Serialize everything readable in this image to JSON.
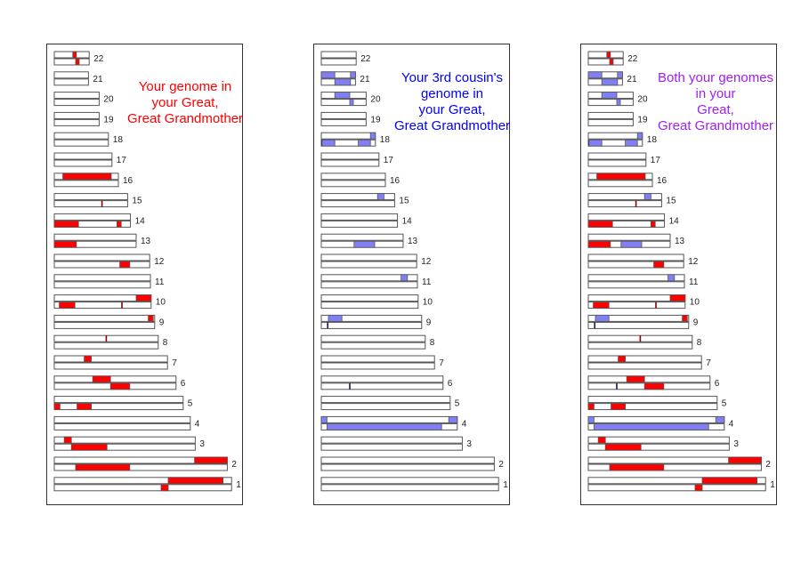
{
  "colors": {
    "red_segment": "#ff0000",
    "blue_segment": "#8080f4",
    "marker_dark_red": "#8b0000",
    "marker_dark_blue": "#1a1a5a",
    "title_red": "#ff0000",
    "title_blue": "#0000ff",
    "title_purple": "#a020f0",
    "outline": "#555555"
  },
  "chromosome_lengths_mb": {
    "1": 249,
    "2": 243,
    "3": 198,
    "4": 191,
    "5": 181,
    "6": 171,
    "7": 159,
    "8": 146,
    "9": 141,
    "10": 136,
    "11": 135,
    "12": 134,
    "13": 115,
    "14": 107,
    "15": 103,
    "16": 90,
    "17": 81,
    "18": 76,
    "19": 63,
    "20": 63,
    "21": 48,
    "22": 49
  },
  "chromosome_order": [
    "22",
    "21",
    "20",
    "19",
    "18",
    "17",
    "16",
    "15",
    "14",
    "13",
    "12",
    "11",
    "10",
    "9",
    "8",
    "7",
    "6",
    "5",
    "4",
    "3",
    "2",
    "1"
  ],
  "panels": [
    {
      "id": "yours",
      "title": "Your genome in\nyour Great,\nGreat Grandmother",
      "title_color_key": "title_red",
      "segments": [
        {
          "chr": "22",
          "strand": "top",
          "start": 26,
          "end": 31,
          "kind": "red"
        },
        {
          "chr": "22",
          "strand": "bottom",
          "start": 30,
          "end": 35,
          "kind": "red"
        },
        {
          "chr": "16",
          "strand": "top",
          "start": 12,
          "end": 80,
          "kind": "red"
        },
        {
          "chr": "15",
          "strand": "bottom",
          "start": 66,
          "end": 68,
          "kind": "red-thin"
        },
        {
          "chr": "14",
          "strand": "bottom",
          "start": 0,
          "end": 34,
          "kind": "red"
        },
        {
          "chr": "14",
          "strand": "bottom",
          "start": 88,
          "end": 94,
          "kind": "red"
        },
        {
          "chr": "13",
          "strand": "bottom",
          "start": 0,
          "end": 31,
          "kind": "red"
        },
        {
          "chr": "12",
          "strand": "bottom",
          "start": 92,
          "end": 106,
          "kind": "red"
        },
        {
          "chr": "10",
          "strand": "top",
          "start": 115,
          "end": 136,
          "kind": "red"
        },
        {
          "chr": "10",
          "strand": "bottom",
          "start": 7,
          "end": 29,
          "kind": "red"
        },
        {
          "chr": "10",
          "strand": "bottom",
          "start": 94,
          "end": 96,
          "kind": "red-thin"
        },
        {
          "chr": "9",
          "strand": "top",
          "start": 132,
          "end": 139,
          "kind": "red"
        },
        {
          "chr": "8",
          "strand": "top",
          "start": 72,
          "end": 74,
          "kind": "red-thin"
        },
        {
          "chr": "7",
          "strand": "top",
          "start": 42,
          "end": 52,
          "kind": "red"
        },
        {
          "chr": "6",
          "strand": "top",
          "start": 54,
          "end": 79,
          "kind": "red"
        },
        {
          "chr": "6",
          "strand": "bottom",
          "start": 79,
          "end": 106,
          "kind": "red"
        },
        {
          "chr": "5",
          "strand": "bottom",
          "start": 0,
          "end": 8,
          "kind": "red"
        },
        {
          "chr": "5",
          "strand": "bottom",
          "start": 32,
          "end": 52,
          "kind": "red"
        },
        {
          "chr": "3",
          "strand": "top",
          "start": 14,
          "end": 24,
          "kind": "red"
        },
        {
          "chr": "3",
          "strand": "bottom",
          "start": 24,
          "end": 74,
          "kind": "red"
        },
        {
          "chr": "2",
          "strand": "top",
          "start": 197,
          "end": 243,
          "kind": "red"
        },
        {
          "chr": "2",
          "strand": "bottom",
          "start": 30,
          "end": 106,
          "kind": "red"
        },
        {
          "chr": "1",
          "strand": "top",
          "start": 160,
          "end": 237,
          "kind": "red"
        },
        {
          "chr": "1",
          "strand": "bottom",
          "start": 150,
          "end": 160,
          "kind": "red"
        }
      ]
    },
    {
      "id": "cousin",
      "title": "Your 3rd cousin's\ngenome in\nyour Great,\nGreat Grandmother",
      "title_color_key": "title_blue",
      "segments": [
        {
          "chr": "21",
          "strand": "top",
          "start": 0,
          "end": 19,
          "kind": "blue"
        },
        {
          "chr": "21",
          "strand": "top",
          "start": 41,
          "end": 48,
          "kind": "blue"
        },
        {
          "chr": "21",
          "strand": "bottom",
          "start": 19,
          "end": 41,
          "kind": "blue"
        },
        {
          "chr": "20",
          "strand": "top",
          "start": 19,
          "end": 40,
          "kind": "blue"
        },
        {
          "chr": "20",
          "strand": "bottom",
          "start": 40,
          "end": 45,
          "kind": "blue"
        },
        {
          "chr": "18",
          "strand": "top",
          "start": 69,
          "end": 76,
          "kind": "blue"
        },
        {
          "chr": "18",
          "strand": "bottom",
          "start": 0,
          "end": 1,
          "kind": "blue-thin"
        },
        {
          "chr": "18",
          "strand": "bottom",
          "start": 1,
          "end": 19,
          "kind": "blue"
        },
        {
          "chr": "18",
          "strand": "bottom",
          "start": 52,
          "end": 69,
          "kind": "blue"
        },
        {
          "chr": "15",
          "strand": "top",
          "start": 79,
          "end": 88,
          "kind": "blue"
        },
        {
          "chr": "13",
          "strand": "bottom",
          "start": 46,
          "end": 75,
          "kind": "blue"
        },
        {
          "chr": "11",
          "strand": "top",
          "start": 112,
          "end": 121,
          "kind": "blue"
        },
        {
          "chr": "9",
          "strand": "top",
          "start": 10,
          "end": 29,
          "kind": "blue"
        },
        {
          "chr": "9",
          "strand": "bottom",
          "start": 8,
          "end": 10,
          "kind": "blue-thin"
        },
        {
          "chr": "6",
          "strand": "bottom",
          "start": 39,
          "end": 41,
          "kind": "blue-thin"
        },
        {
          "chr": "4",
          "strand": "top",
          "start": 0,
          "end": 8,
          "kind": "blue"
        },
        {
          "chr": "4",
          "strand": "top",
          "start": 179,
          "end": 191,
          "kind": "blue"
        },
        {
          "chr": "4",
          "strand": "bottom",
          "start": 8,
          "end": 169,
          "kind": "blue"
        }
      ]
    },
    {
      "id": "both",
      "title": "Both your genomes\nin your\nGreat,\nGreat Grandmother",
      "title_color_key": "title_purple",
      "segments": [
        {
          "chr": "22",
          "strand": "top",
          "start": 26,
          "end": 31,
          "kind": "red"
        },
        {
          "chr": "22",
          "strand": "bottom",
          "start": 30,
          "end": 35,
          "kind": "red"
        },
        {
          "chr": "21",
          "strand": "top",
          "start": 0,
          "end": 19,
          "kind": "blue"
        },
        {
          "chr": "21",
          "strand": "top",
          "start": 41,
          "end": 48,
          "kind": "blue"
        },
        {
          "chr": "21",
          "strand": "bottom",
          "start": 19,
          "end": 41,
          "kind": "blue"
        },
        {
          "chr": "20",
          "strand": "top",
          "start": 19,
          "end": 40,
          "kind": "blue"
        },
        {
          "chr": "20",
          "strand": "bottom",
          "start": 40,
          "end": 45,
          "kind": "blue"
        },
        {
          "chr": "18",
          "strand": "top",
          "start": 69,
          "end": 76,
          "kind": "blue"
        },
        {
          "chr": "18",
          "strand": "bottom",
          "start": 0,
          "end": 1,
          "kind": "blue-thin"
        },
        {
          "chr": "18",
          "strand": "bottom",
          "start": 1,
          "end": 19,
          "kind": "blue"
        },
        {
          "chr": "18",
          "strand": "bottom",
          "start": 52,
          "end": 69,
          "kind": "blue"
        },
        {
          "chr": "16",
          "strand": "top",
          "start": 12,
          "end": 80,
          "kind": "red"
        },
        {
          "chr": "15",
          "strand": "top",
          "start": 79,
          "end": 88,
          "kind": "blue"
        },
        {
          "chr": "15",
          "strand": "bottom",
          "start": 66,
          "end": 68,
          "kind": "red-thin"
        },
        {
          "chr": "14",
          "strand": "bottom",
          "start": 0,
          "end": 34,
          "kind": "red"
        },
        {
          "chr": "14",
          "strand": "bottom",
          "start": 88,
          "end": 94,
          "kind": "red"
        },
        {
          "chr": "13",
          "strand": "bottom",
          "start": 0,
          "end": 31,
          "kind": "red"
        },
        {
          "chr": "13",
          "strand": "bottom",
          "start": 46,
          "end": 75,
          "kind": "blue"
        },
        {
          "chr": "12",
          "strand": "bottom",
          "start": 92,
          "end": 106,
          "kind": "red"
        },
        {
          "chr": "11",
          "strand": "top",
          "start": 112,
          "end": 121,
          "kind": "blue"
        },
        {
          "chr": "10",
          "strand": "top",
          "start": 115,
          "end": 136,
          "kind": "red"
        },
        {
          "chr": "10",
          "strand": "bottom",
          "start": 7,
          "end": 29,
          "kind": "red"
        },
        {
          "chr": "10",
          "strand": "bottom",
          "start": 94,
          "end": 96,
          "kind": "red-thin"
        },
        {
          "chr": "9",
          "strand": "top",
          "start": 10,
          "end": 29,
          "kind": "blue"
        },
        {
          "chr": "9",
          "strand": "top",
          "start": 132,
          "end": 139,
          "kind": "red"
        },
        {
          "chr": "9",
          "strand": "bottom",
          "start": 8,
          "end": 10,
          "kind": "blue-thin"
        },
        {
          "chr": "8",
          "strand": "top",
          "start": 72,
          "end": 74,
          "kind": "red-thin"
        },
        {
          "chr": "7",
          "strand": "top",
          "start": 42,
          "end": 52,
          "kind": "red"
        },
        {
          "chr": "6",
          "strand": "top",
          "start": 54,
          "end": 79,
          "kind": "red"
        },
        {
          "chr": "6",
          "strand": "bottom",
          "start": 39,
          "end": 41,
          "kind": "blue-thin"
        },
        {
          "chr": "6",
          "strand": "bottom",
          "start": 79,
          "end": 106,
          "kind": "red"
        },
        {
          "chr": "5",
          "strand": "bottom",
          "start": 0,
          "end": 8,
          "kind": "red"
        },
        {
          "chr": "5",
          "strand": "bottom",
          "start": 32,
          "end": 52,
          "kind": "red"
        },
        {
          "chr": "4",
          "strand": "top",
          "start": 0,
          "end": 8,
          "kind": "blue"
        },
        {
          "chr": "4",
          "strand": "top",
          "start": 179,
          "end": 191,
          "kind": "blue"
        },
        {
          "chr": "4",
          "strand": "bottom",
          "start": 8,
          "end": 169,
          "kind": "blue"
        },
        {
          "chr": "3",
          "strand": "top",
          "start": 14,
          "end": 24,
          "kind": "red"
        },
        {
          "chr": "3",
          "strand": "bottom",
          "start": 24,
          "end": 74,
          "kind": "red"
        },
        {
          "chr": "2",
          "strand": "top",
          "start": 197,
          "end": 243,
          "kind": "red"
        },
        {
          "chr": "2",
          "strand": "bottom",
          "start": 30,
          "end": 106,
          "kind": "red"
        },
        {
          "chr": "1",
          "strand": "top",
          "start": 160,
          "end": 237,
          "kind": "red"
        },
        {
          "chr": "1",
          "strand": "bottom",
          "start": 150,
          "end": 160,
          "kind": "red"
        }
      ]
    }
  ]
}
